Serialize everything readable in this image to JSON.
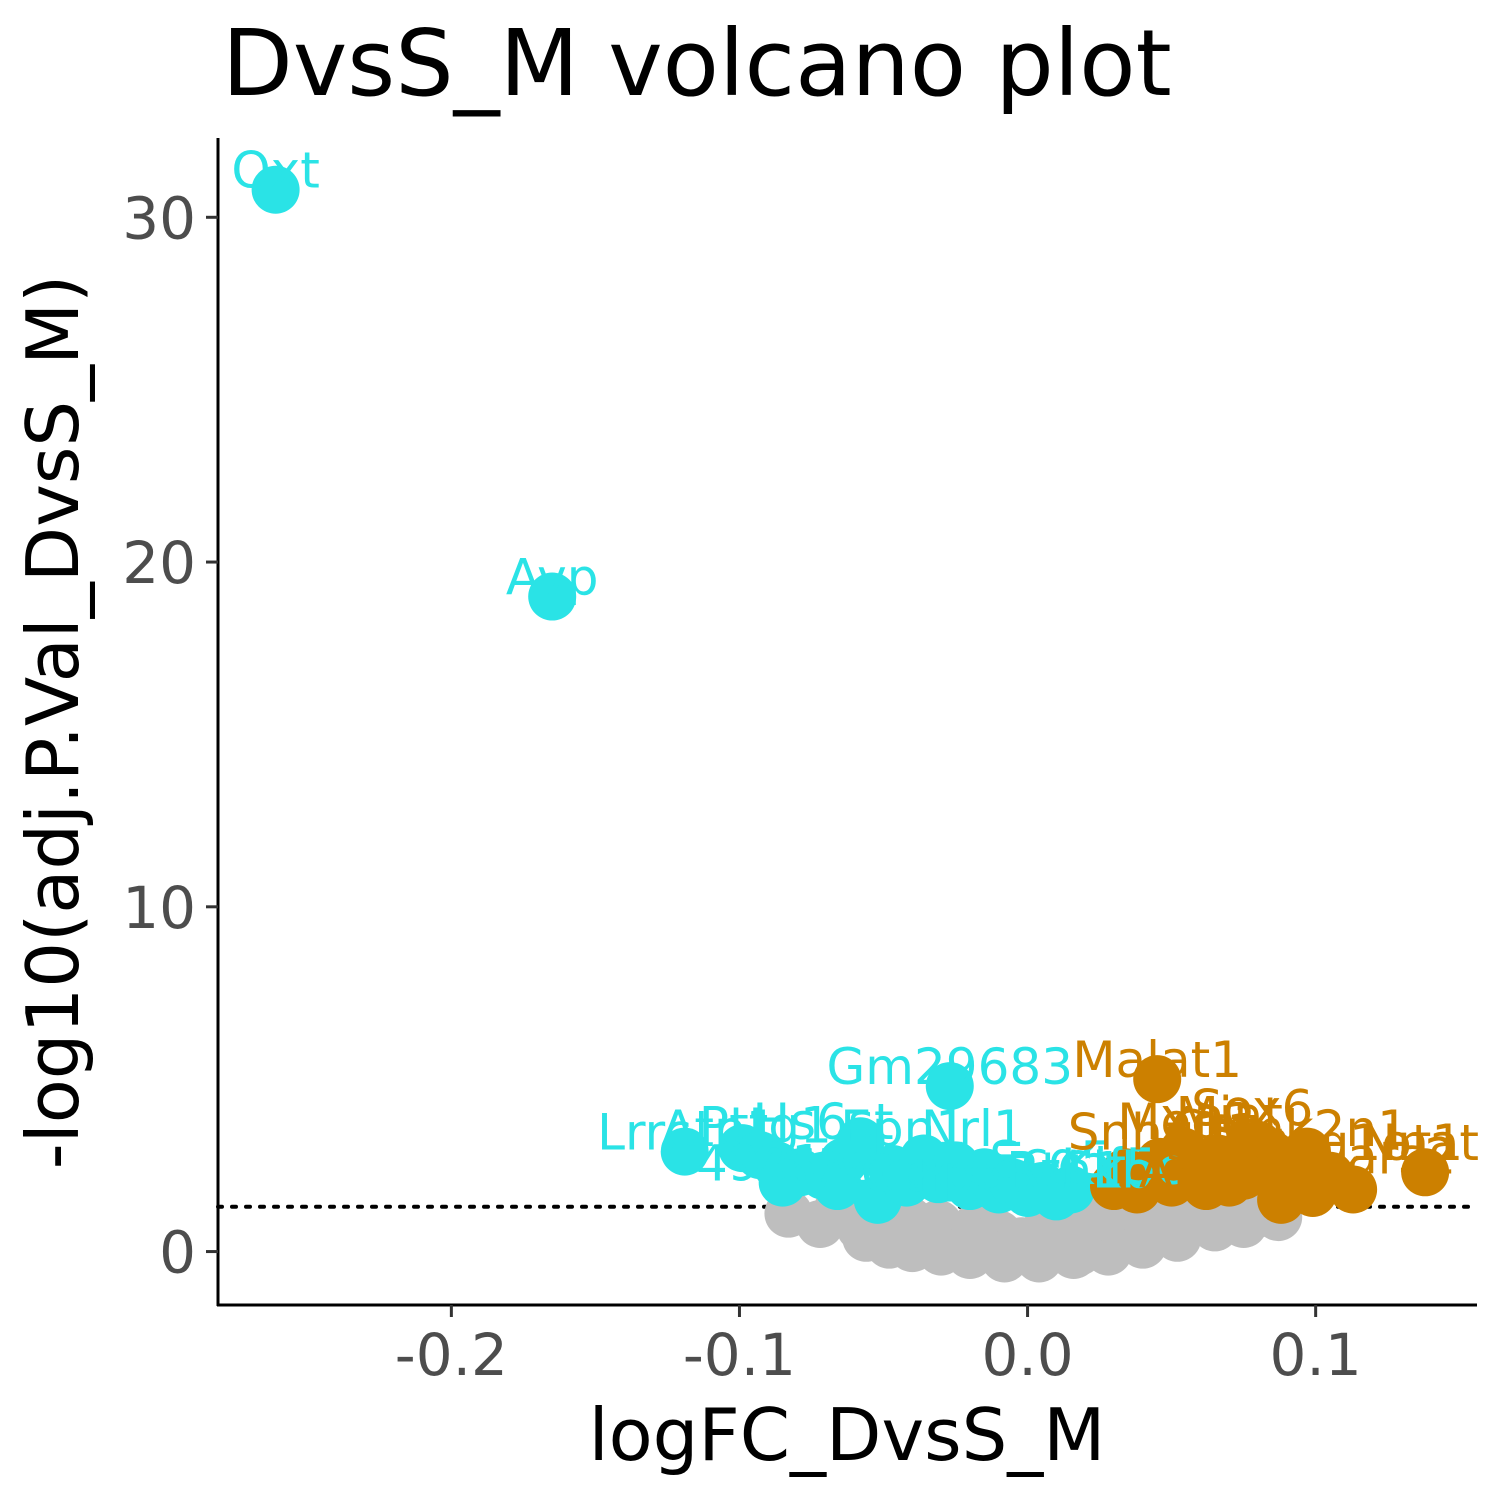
{
  "chart_data": {
    "type": "scatter",
    "title": "DvsS_M volcano plot",
    "xlabel": "logFC_DvsS_M",
    "ylabel": "-log10(adj.P.Val_DvsS_M)",
    "xlim": [
      -0.281,
      0.156
    ],
    "ylim": [
      -1.55,
      32.3
    ],
    "xticks": [
      -0.2,
      -0.1,
      0.0,
      0.1
    ],
    "xtick_labels": [
      "-0.2",
      "-0.1",
      "0.0",
      "0.1"
    ],
    "yticks": [
      0,
      10,
      20,
      30
    ],
    "ytick_labels": [
      "0",
      "10",
      "20",
      "30"
    ],
    "threshold_y": 1.3,
    "grid": false,
    "legend": "none",
    "colors": {
      "down": "#2ae3e6",
      "up": "#cc8000",
      "ns": "#bebebe",
      "axis": "#000000",
      "tick_label": "#4d4d4d"
    },
    "series": [
      {
        "color_key": "ns",
        "points": [
          [
            -0.083,
            1.1
          ],
          [
            -0.072,
            0.8
          ],
          [
            -0.066,
            1.2
          ],
          [
            -0.058,
            0.7
          ],
          [
            -0.052,
            1.0
          ],
          [
            -0.046,
            0.5
          ],
          [
            -0.041,
            0.9
          ],
          [
            -0.036,
            0.3
          ],
          [
            -0.031,
            0.8
          ],
          [
            -0.027,
            0.4
          ],
          [
            -0.022,
            0.2
          ],
          [
            -0.018,
            0.7
          ],
          [
            -0.014,
            0.1
          ],
          [
            -0.01,
            0.5
          ],
          [
            -0.006,
            0.0
          ],
          [
            -0.002,
            0.3
          ],
          [
            0.002,
            0.1
          ],
          [
            0.006,
            0.6
          ],
          [
            0.01,
            0.2
          ],
          [
            0.014,
            0.4
          ],
          [
            0.018,
            0.0
          ],
          [
            0.022,
            0.7
          ],
          [
            0.026,
            0.3
          ],
          [
            0.03,
            0.9
          ],
          [
            0.034,
            0.5
          ],
          [
            0.038,
            1.0
          ],
          [
            0.042,
            0.6
          ],
          [
            0.046,
            0.8
          ],
          [
            0.05,
            1.1
          ],
          [
            0.055,
            0.9
          ],
          [
            0.06,
            1.2
          ],
          [
            0.065,
            0.7
          ],
          [
            0.07,
            1.0
          ],
          [
            0.075,
            0.8
          ],
          [
            0.08,
            1.1
          ],
          [
            0.087,
            1.0
          ],
          [
            -0.048,
            0.2
          ],
          [
            -0.04,
            0.1
          ],
          [
            -0.03,
            0.0
          ],
          [
            -0.02,
            -0.1
          ],
          [
            -0.008,
            -0.2
          ],
          [
            0.004,
            -0.2
          ],
          [
            0.016,
            -0.1
          ],
          [
            0.028,
            0.0
          ],
          [
            0.04,
            0.2
          ],
          [
            0.052,
            0.4
          ],
          [
            -0.056,
            0.4
          ],
          [
            -0.035,
            0.6
          ],
          [
            0.012,
            0.9
          ],
          [
            0.024,
            1.0
          ]
        ]
      },
      {
        "color_key": "down",
        "points": [
          [
            -0.261,
            30.8
          ],
          [
            -0.165,
            19.0
          ],
          [
            -0.027,
            4.8
          ],
          [
            -0.119,
            2.9
          ],
          [
            -0.099,
            3.0
          ],
          [
            -0.093,
            2.8
          ],
          [
            -0.087,
            2.5
          ],
          [
            -0.079,
            2.3
          ],
          [
            -0.071,
            2.2
          ],
          [
            -0.064,
            2.6
          ],
          [
            -0.058,
            3.2
          ],
          [
            -0.052,
            1.5
          ],
          [
            -0.047,
            2.4
          ],
          [
            -0.042,
            2.0
          ],
          [
            -0.036,
            2.7
          ],
          [
            -0.031,
            2.1
          ],
          [
            -0.025,
            2.5
          ],
          [
            -0.02,
            1.9
          ],
          [
            -0.015,
            2.3
          ],
          [
            -0.01,
            1.8
          ],
          [
            -0.005,
            2.0
          ],
          [
            0.0,
            1.7
          ],
          [
            0.005,
            1.9
          ],
          [
            0.01,
            1.6
          ],
          [
            0.015,
            1.8
          ],
          [
            -0.066,
            1.9
          ],
          [
            -0.085,
            2.0
          ]
        ]
      },
      {
        "color_key": "up",
        "points": [
          [
            0.045,
            5.0
          ],
          [
            0.138,
            2.3
          ],
          [
            0.113,
            1.8
          ],
          [
            0.105,
            2.2
          ],
          [
            0.099,
            1.7
          ],
          [
            0.094,
            2.5
          ],
          [
            0.088,
            1.5
          ],
          [
            0.085,
            2.8
          ],
          [
            0.08,
            3.1
          ],
          [
            0.075,
            2.2
          ],
          [
            0.07,
            2.0
          ],
          [
            0.066,
            2.7
          ],
          [
            0.062,
            1.9
          ],
          [
            0.058,
            2.4
          ],
          [
            0.054,
            2.9
          ],
          [
            0.05,
            2.0
          ],
          [
            0.046,
            2.6
          ],
          [
            0.042,
            2.1
          ],
          [
            0.038,
            1.8
          ],
          [
            0.034,
            2.3
          ],
          [
            0.03,
            1.9
          ],
          [
            0.088,
            2.1
          ],
          [
            0.097,
            2.9
          ]
        ]
      }
    ],
    "labels": [
      {
        "text": "Oxt",
        "x": -0.261,
        "y": 30.8,
        "color_key": "down"
      },
      {
        "text": "Avp",
        "x": -0.165,
        "y": 19.0,
        "color_key": "down"
      },
      {
        "text": "Gm29683",
        "x": -0.027,
        "y": 4.8,
        "color_key": "down"
      },
      {
        "text": "Lrrc",
        "x": -0.133,
        "y": 2.9,
        "color_key": "down"
      },
      {
        "text": "Atp1",
        "x": -0.107,
        "y": 3.0,
        "color_key": "down"
      },
      {
        "text": "Pttg1",
        "x": -0.091,
        "y": 3.1,
        "color_key": "down"
      },
      {
        "text": "Hs6st",
        "x": -0.071,
        "y": 3.2,
        "color_key": "down"
      },
      {
        "text": "Epn1",
        "x": -0.043,
        "y": 3.0,
        "color_key": "down"
      },
      {
        "text": "Nrl1",
        "x": -0.019,
        "y": 3.0,
        "color_key": "down"
      },
      {
        "text": "4931",
        "x": -0.093,
        "y": 2.0,
        "color_key": "down"
      },
      {
        "text": "4632",
        "x": -0.073,
        "y": 1.9,
        "color_key": "down"
      },
      {
        "text": "Actb",
        "x": -0.053,
        "y": 1.8,
        "color_key": "down"
      },
      {
        "text": "Gpr37",
        "x": -0.031,
        "y": 1.7,
        "color_key": "down"
      },
      {
        "text": "Ppp3r1",
        "x": -0.009,
        "y": 1.7,
        "color_key": "down"
      },
      {
        "text": "Scg5",
        "x": 0.008,
        "y": 2.1,
        "color_key": "down"
      },
      {
        "text": "Rtn1",
        "x": 0.013,
        "y": 1.8,
        "color_key": "down"
      },
      {
        "text": "Ckb",
        "x": 0.027,
        "y": 1.8,
        "color_key": "down"
      },
      {
        "text": "Kif5c",
        "x": 0.033,
        "y": 1.9,
        "color_key": "down"
      },
      {
        "text": "Malat1",
        "x": 0.045,
        "y": 5.0,
        "color_key": "up"
      },
      {
        "text": "Meg3",
        "x": 0.055,
        "y": 3.2,
        "color_key": "up"
      },
      {
        "text": "Snhg11",
        "x": 0.047,
        "y": 2.9,
        "color_key": "up"
      },
      {
        "text": "Sox6",
        "x": 0.078,
        "y": 3.6,
        "color_key": "up"
      },
      {
        "text": "Miat",
        "x": 0.07,
        "y": 3.4,
        "color_key": "up"
      },
      {
        "text": "Xist",
        "x": 0.062,
        "y": 3.1,
        "color_key": "up"
      },
      {
        "text": "Rian",
        "x": 0.083,
        "y": 2.7,
        "color_key": "up"
      },
      {
        "text": "Camk2n1",
        "x": 0.091,
        "y": 3.0,
        "color_key": "up"
      },
      {
        "text": "Kcnq1ot1",
        "x": 0.11,
        "y": 2.6,
        "color_key": "up"
      },
      {
        "text": "Nnat",
        "x": 0.136,
        "y": 2.6,
        "color_key": "up"
      },
      {
        "text": "Ahi1",
        "x": 0.058,
        "y": 1.8,
        "color_key": "up"
      },
      {
        "text": "Tsix",
        "x": 0.1,
        "y": 1.9,
        "color_key": "up"
      },
      {
        "text": "Lars2",
        "x": 0.125,
        "y": 2.2,
        "color_key": "up"
      }
    ]
  }
}
